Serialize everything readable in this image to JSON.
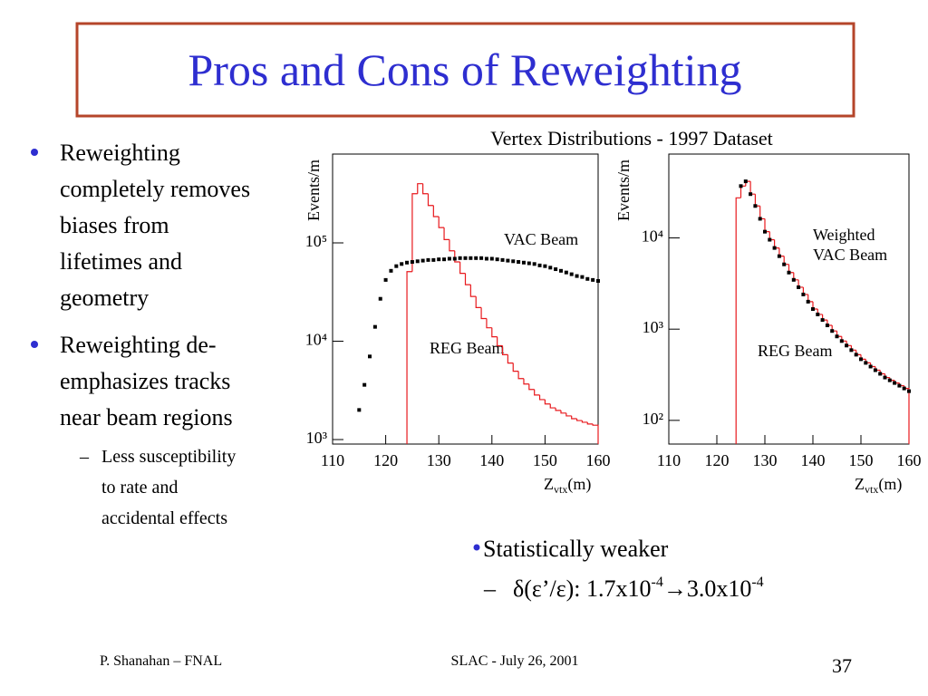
{
  "slide": {
    "title": "Pros and Cons of Reweighting",
    "bullets": [
      {
        "lines": [
          "Reweighting",
          "completely removes",
          "biases from",
          "lifetimes and",
          "geometry"
        ]
      },
      {
        "lines": [
          "Reweighting de-",
          "emphasizes tracks",
          "near beam regions"
        ]
      }
    ],
    "sub_bullet": {
      "dash": "–",
      "lines": [
        "Less susceptibility",
        "to rate and",
        "accidental effects"
      ]
    },
    "stat": {
      "text": "Statistically weaker",
      "dash": "–",
      "parts": [
        "δ(ε’/ε): 1.7x10",
        "-4",
        "→",
        "3.0x10",
        "-4"
      ]
    },
    "footer": {
      "left": "P. Shanahan – FNAL",
      "center": "SLAC  -  July 26, 2001",
      "page": "37"
    },
    "figure_title": "Vertex Distributions - 1997 Dataset"
  },
  "chart_data": [
    {
      "type": "combo",
      "log_y": true,
      "ylabel": "Events/m",
      "xlabel": [
        "Z",
        "vtx",
        "(m)"
      ],
      "xlim": [
        110,
        160
      ],
      "xticks": [
        110,
        120,
        130,
        140,
        150,
        160
      ],
      "ylim": [
        900,
        800000
      ],
      "yticks": [
        {
          "value": 1000,
          "label": "10³"
        },
        {
          "value": 10000,
          "label": "10⁴"
        },
        {
          "value": 100000,
          "label": "10⁵"
        }
      ],
      "annotations": [
        "VAC Beam",
        "REG Beam"
      ],
      "series": [
        {
          "name": "VAC Beam",
          "type": "scatter",
          "color": "#000000",
          "x": [
            115,
            116,
            117,
            118,
            119,
            120,
            121,
            122,
            123,
            124,
            125,
            126,
            127,
            128,
            129,
            130,
            131,
            132,
            133,
            134,
            135,
            136,
            137,
            138,
            139,
            140,
            141,
            142,
            143,
            144,
            145,
            146,
            147,
            148,
            149,
            150,
            151,
            152,
            153,
            154,
            155,
            156,
            157,
            158,
            159,
            160
          ],
          "values": [
            2000,
            3600,
            7000,
            14000,
            27000,
            42000,
            52000,
            58000,
            61000,
            63000,
            64000,
            65000,
            66000,
            67000,
            67000,
            68000,
            68000,
            69000,
            69000,
            70000,
            70000,
            70000,
            70000,
            70000,
            69000,
            69000,
            68000,
            67000,
            66000,
            65000,
            64000,
            63000,
            62000,
            61000,
            59000,
            58000,
            56000,
            54000,
            52000,
            50000,
            48000,
            46000,
            45000,
            43000,
            42000,
            41000
          ]
        },
        {
          "name": "REG Beam",
          "type": "histogram",
          "color": "#e8191d",
          "bins": [
            124,
            125,
            126,
            127,
            128,
            129,
            130,
            131,
            132,
            133,
            134,
            135,
            136,
            137,
            138,
            139,
            140,
            141,
            142,
            143,
            144,
            145,
            146,
            147,
            148,
            149,
            150,
            151,
            152,
            153,
            154,
            155,
            156,
            157,
            158,
            159,
            160
          ],
          "values": [
            51000,
            316000,
            400000,
            316000,
            240000,
            185000,
            143000,
            108000,
            83000,
            64000,
            49000,
            37600,
            28500,
            22000,
            17000,
            13700,
            11100,
            9000,
            7300,
            6000,
            4950,
            4170,
            3670,
            3230,
            2840,
            2550,
            2300,
            2100,
            1980,
            1860,
            1740,
            1630,
            1560,
            1500,
            1440,
            1400
          ]
        }
      ]
    },
    {
      "type": "combo",
      "log_y": true,
      "ylabel": "Events/m",
      "xlabel": [
        "Z",
        "vtx",
        "(m)"
      ],
      "xlim": [
        110,
        160
      ],
      "xticks": [
        110,
        120,
        130,
        140,
        150,
        160
      ],
      "ylim": [
        55,
        83000
      ],
      "yticks": [
        {
          "value": 100,
          "label": "10²"
        },
        {
          "value": 1000,
          "label": "10³"
        },
        {
          "value": 10000,
          "label": "10⁴"
        }
      ],
      "annotations": [
        "Weighted",
        "VAC Beam",
        "REG Beam"
      ],
      "series": [
        {
          "name": "Weighted VAC Beam",
          "type": "scatter",
          "color": "#000000",
          "x": [
            125,
            126,
            127,
            128,
            129,
            130,
            131,
            132,
            133,
            134,
            135,
            136,
            137,
            138,
            139,
            140,
            141,
            142,
            143,
            144,
            145,
            146,
            147,
            148,
            149,
            150,
            151,
            152,
            153,
            154,
            155,
            156,
            157,
            158,
            159,
            160
          ],
          "values": [
            37000,
            41700,
            30200,
            22400,
            16200,
            11700,
            9550,
            7760,
            6310,
            5130,
            4170,
            3470,
            2880,
            2400,
            2000,
            1660,
            1450,
            1260,
            1100,
            955,
            832,
            741,
            661,
            589,
            525,
            468,
            427,
            389,
            355,
            324,
            295,
            275,
            257,
            240,
            224,
            209
          ]
        },
        {
          "name": "REG Beam",
          "type": "histogram",
          "color": "#e8191d",
          "bins": [
            124,
            125,
            126,
            127,
            128,
            129,
            130,
            131,
            132,
            133,
            134,
            135,
            136,
            137,
            138,
            139,
            140,
            141,
            142,
            143,
            144,
            145,
            146,
            147,
            148,
            149,
            150,
            151,
            152,
            153,
            154,
            155,
            156,
            157,
            158,
            159,
            160
          ],
          "values": [
            27500,
            37000,
            41700,
            30200,
            22400,
            16200,
            11700,
            9550,
            7760,
            6310,
            5130,
            4170,
            3470,
            2880,
            2400,
            2000,
            1660,
            1450,
            1260,
            1100,
            955,
            832,
            741,
            661,
            589,
            525,
            468,
            427,
            389,
            355,
            324,
            295,
            275,
            257,
            240,
            224
          ]
        }
      ]
    }
  ]
}
